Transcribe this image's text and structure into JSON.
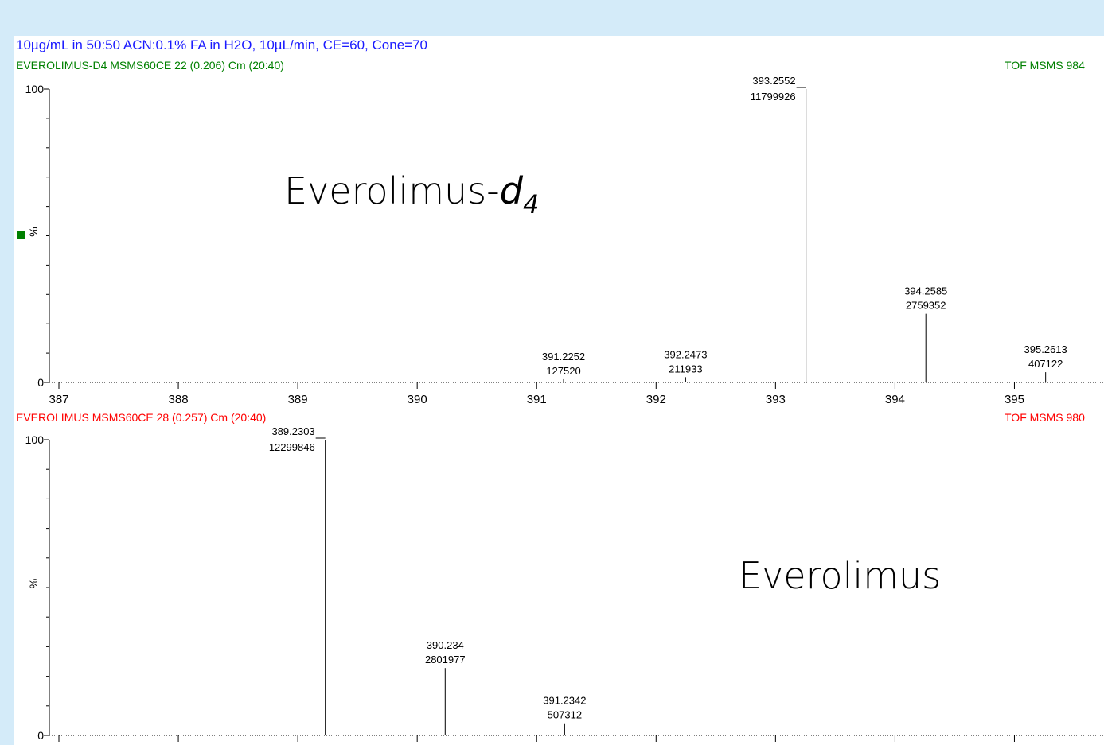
{
  "title": "10µg/mL in 50:50 ACN:0.1% FA in H2O, 10µL/min, CE=60, Cone=70",
  "chart_data": [
    {
      "type": "stick",
      "subtitle": "EVEROLIMUS-D4 MSMS60CE 22 (0.206) Cm (20:40)",
      "instrument": "TOF MSMS 984",
      "color": "#008000",
      "stick_color": "#000000",
      "legend_marker_color": "#008000",
      "ylabel": "%",
      "annotation": {
        "text": "Everolimus-",
        "italic": "d",
        "subscript": "4"
      },
      "x": [
        391.2252,
        392.2473,
        393.2552,
        394.2585,
        395.2613
      ],
      "values": [
        1.1,
        1.8,
        100,
        23.4,
        3.5
      ],
      "counts": [
        127520,
        211933,
        11799926,
        2759352,
        407122
      ],
      "xlim": [
        386.92,
        395.75
      ],
      "ylim": [
        0,
        100
      ],
      "yticks": [
        0,
        100
      ],
      "yminorticks": [
        10,
        20,
        30,
        40,
        50,
        60,
        70,
        80,
        90
      ],
      "xticks": [
        387,
        388,
        389,
        390,
        391,
        392,
        393,
        394,
        395
      ],
      "show_xtick_labels": true
    },
    {
      "type": "stick",
      "subtitle": "EVEROLIMUS MSMS60CE 28 (0.257) Cm (20:40)",
      "instrument": "TOF MSMS 980",
      "color": "#ff0000",
      "stick_color": "#000000",
      "ylabel": "%",
      "annotation": {
        "text": "Everolimus"
      },
      "x": [
        389.2303,
        390.234,
        391.2342
      ],
      "values": [
        100,
        22.8,
        4.1
      ],
      "counts": [
        12299846,
        2801977,
        507312
      ],
      "xlim": [
        386.92,
        395.75
      ],
      "ylim": [
        0,
        100
      ],
      "yticks": [
        0,
        100
      ],
      "yminorticks": [
        10,
        20,
        30,
        40,
        50,
        60,
        70,
        80,
        90
      ],
      "xticks": [
        387,
        388,
        389,
        390,
        391,
        392,
        393,
        394,
        395
      ],
      "show_xtick_labels": false
    }
  ]
}
